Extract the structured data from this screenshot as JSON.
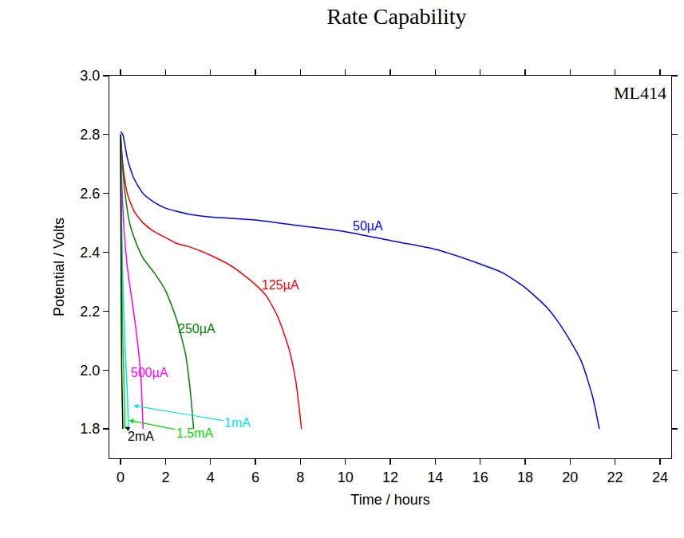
{
  "chart_data": {
    "type": "line",
    "title": "Rate Capability",
    "annotation": "ML414",
    "x_label": "Time / hours",
    "y_label": "Potential / Volts",
    "xlim": [
      -0.5,
      24.5
    ],
    "xticks": [
      0,
      2,
      4,
      6,
      8,
      10,
      12,
      14,
      16,
      18,
      20,
      22,
      24
    ],
    "ylim": [
      1.7,
      3.0
    ],
    "yticks": [
      {
        "value": 1.8,
        "label": "1.8"
      },
      {
        "value": 2.0,
        "label": "2.0"
      },
      {
        "value": 2.2,
        "label": "2.2"
      },
      {
        "value": 2.4,
        "label": "2.4"
      },
      {
        "value": 2.6,
        "label": "2.6"
      },
      {
        "value": 2.8,
        "label": "2.8"
      },
      {
        "value": 3.0,
        "label": "3.0"
      }
    ],
    "grid": false,
    "series": [
      {
        "name": "50µA",
        "color": "#0000ff",
        "x": [
          0,
          0.1,
          0.3,
          0.6,
          1,
          1.5,
          2,
          3,
          4,
          6,
          8,
          10,
          12,
          14,
          16,
          17,
          18,
          19,
          19.5,
          20,
          20.5,
          21,
          21.3
        ],
        "values": [
          2.81,
          2.8,
          2.72,
          2.65,
          2.6,
          2.57,
          2.55,
          2.53,
          2.52,
          2.51,
          2.49,
          2.47,
          2.44,
          2.41,
          2.36,
          2.33,
          2.28,
          2.21,
          2.16,
          2.1,
          2.03,
          1.91,
          1.8
        ]
      },
      {
        "name": "125µA",
        "color": "#ff0000",
        "x": [
          0,
          0.1,
          0.3,
          0.6,
          1,
          1.5,
          2,
          2.5,
          3,
          4,
          5,
          6,
          6.5,
          7,
          7.5,
          7.8,
          8.05
        ],
        "values": [
          2.8,
          2.7,
          2.6,
          2.54,
          2.5,
          2.47,
          2.45,
          2.43,
          2.42,
          2.39,
          2.35,
          2.29,
          2.25,
          2.18,
          2.07,
          1.96,
          1.8
        ]
      },
      {
        "name": "250µA",
        "color": "#008000",
        "x": [
          0,
          0.1,
          0.2,
          0.4,
          0.6,
          1,
          1.5,
          2,
          2.5,
          2.9,
          3.1,
          3.25
        ],
        "values": [
          2.8,
          2.68,
          2.6,
          2.5,
          2.45,
          2.38,
          2.33,
          2.27,
          2.17,
          2.05,
          1.93,
          1.8
        ]
      },
      {
        "name": "500µA",
        "color": "#ff00ff",
        "x": [
          0,
          0.05,
          0.15,
          0.3,
          0.5,
          0.7,
          0.9,
          1.0
        ],
        "values": [
          2.8,
          2.65,
          2.48,
          2.35,
          2.24,
          2.13,
          1.98,
          1.8
        ]
      },
      {
        "name": "1mA",
        "color": "#00e5ee",
        "x": [
          0,
          0.03,
          0.1,
          0.2,
          0.3,
          0.35
        ],
        "values": [
          2.8,
          2.6,
          2.3,
          2.08,
          1.92,
          1.8
        ]
      },
      {
        "name": "1.5mA",
        "color": "#00dd00",
        "x": [
          0,
          0.03,
          0.1,
          0.16,
          0.2
        ],
        "values": [
          2.8,
          2.5,
          2.1,
          1.93,
          1.8
        ]
      },
      {
        "name": "2mA",
        "color": "#000000",
        "x": [
          0,
          0.02,
          0.05,
          0.08,
          0.1
        ],
        "values": [
          2.8,
          2.4,
          2.0,
          1.88,
          1.8
        ]
      }
    ]
  }
}
